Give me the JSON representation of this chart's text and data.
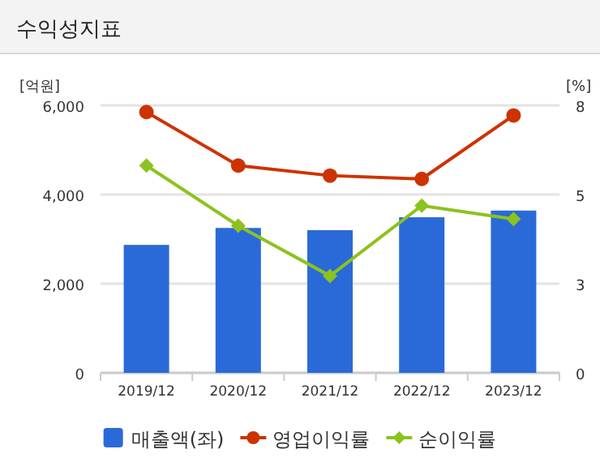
{
  "chart_data": {
    "type": "bar",
    "title": "수익성지표",
    "ylabel": "[억원]",
    "y2label": "[%]",
    "categories": [
      "2019/12",
      "2020/12",
      "2021/12",
      "2022/12",
      "2023/12"
    ],
    "series": [
      {
        "name": "매출액(좌)",
        "color": "#2a6ad8",
        "values": [
          2870,
          3250,
          3200,
          3490,
          3640
        ]
      },
      {
        "name": "영업이익률",
        "type": "line",
        "axis": "y2",
        "color": "#cc3300",
        "marker": "circle",
        "values": [
          7.8,
          6.2,
          5.9,
          5.8,
          7.7
        ]
      },
      {
        "name": "순이익률",
        "type": "line",
        "axis": "y2",
        "color": "#8cc21f",
        "marker": "diamond",
        "values": [
          6.2,
          4.4,
          2.9,
          5.0,
          4.6
        ]
      }
    ],
    "ylim": [
      0,
      6000
    ],
    "yticks": [
      0,
      {
        "value": 2000,
        "label": "2,000"
      },
      {
        "value": 4000,
        "label": "4,000"
      },
      {
        "value": 6000,
        "label": "6,000"
      }
    ],
    "y2lim": [
      0,
      8
    ],
    "y2ticks": [
      0,
      {
        "value": 2.667,
        "label": "3"
      },
      {
        "value": 5.333,
        "label": "5"
      },
      8
    ],
    "grid": "y",
    "legend": "bottom"
  }
}
